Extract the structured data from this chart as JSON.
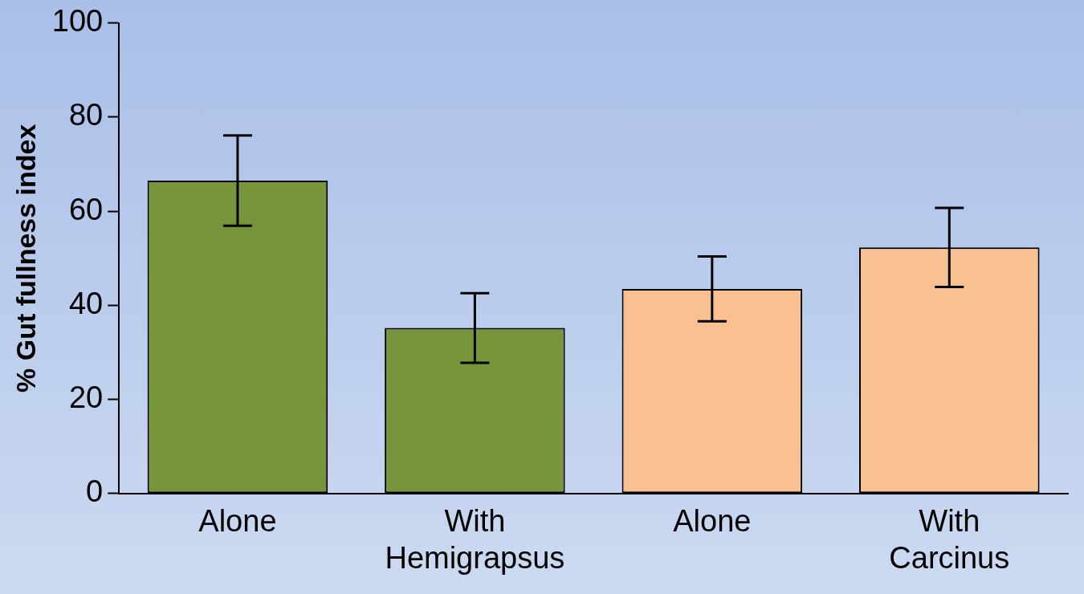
{
  "chart_data": {
    "type": "bar",
    "ylabel": "% Gut fullness index",
    "categories": [
      "Alone",
      "With Hemigrapsus",
      "Alone",
      "With Carcinus"
    ],
    "values": [
      66.5,
      35.2,
      43.5,
      52.3
    ],
    "colors": [
      "#77963c",
      "#77963c",
      "#f9c091",
      "#f9c091"
    ],
    "errors": [
      9.6,
      7.4,
      6.9,
      8.4
    ],
    "ylim": [
      0,
      100
    ],
    "yticks": [
      0,
      20,
      40,
      60,
      80,
      100
    ],
    "grid": false,
    "legend": false
  }
}
